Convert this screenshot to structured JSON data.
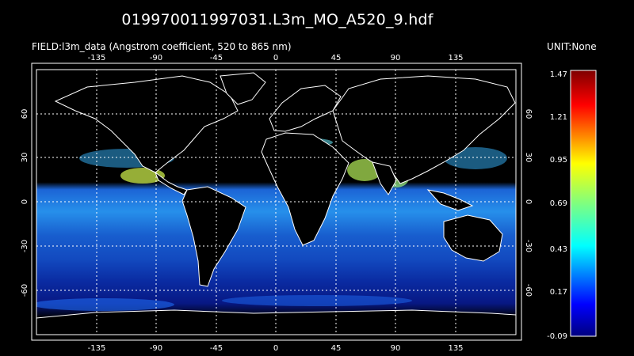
{
  "title": "019970011997031.L3m_MO_A520_9.hdf",
  "field_label": "FIELD:l3m_data (Angstrom coefficient, 520 to 865 nm)",
  "unit_label": "UNIT:None",
  "map": {
    "projection": "equirectangular",
    "lon_range": [
      -180,
      180
    ],
    "lat_range": [
      -90,
      90
    ],
    "lon_ticks": [
      "-135",
      "-90",
      "-45",
      "0",
      "45",
      "90",
      "135"
    ],
    "lat_ticks": [
      "60",
      "30",
      "0",
      "-30",
      "-60"
    ],
    "grid": "dashed white",
    "background": "#000000",
    "coastline_color": "#ffffff"
  },
  "colorbar": {
    "ticks": [
      "1.47",
      "1.21",
      "0.95",
      "0.69",
      "0.43",
      "0.17",
      "-0.09"
    ],
    "min": -0.09,
    "max": 1.47,
    "colormap": "jet"
  }
}
